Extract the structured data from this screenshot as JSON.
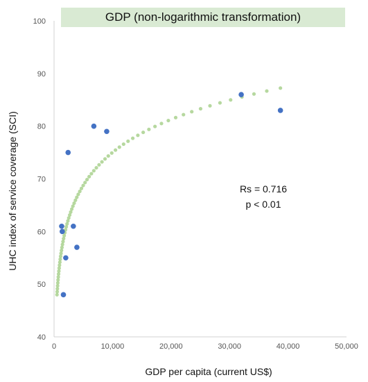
{
  "chart_data": {
    "type": "scatter",
    "title": "GDP (non-logarithmic transformation)",
    "xlabel": "GDP per capita (current US$)",
    "ylabel": "UHC index of service coverage (SCI)",
    "xlim": [
      0,
      50000
    ],
    "ylim": [
      40,
      100
    ],
    "x_ticks": [
      "0",
      "10,000",
      "20,000",
      "30,000",
      "40,000",
      "50,000"
    ],
    "y_ticks": [
      "40",
      "50",
      "60",
      "70",
      "80",
      "90",
      "100"
    ],
    "grid": false,
    "points": [
      {
        "x": 1300,
        "y": 61
      },
      {
        "x": 1400,
        "y": 60
      },
      {
        "x": 1600,
        "y": 48
      },
      {
        "x": 2000,
        "y": 55
      },
      {
        "x": 2400,
        "y": 75
      },
      {
        "x": 3300,
        "y": 61
      },
      {
        "x": 3900,
        "y": 57
      },
      {
        "x": 6800,
        "y": 80
      },
      {
        "x": 9000,
        "y": 79
      },
      {
        "x": 32000,
        "y": 86
      },
      {
        "x": 38700,
        "y": 83
      }
    ],
    "trendline": {
      "type": "logarithmic",
      "x_range": [
        500,
        38700
      ]
    },
    "annotations": [
      "Rs = 0.716",
      "p < 0.01"
    ],
    "colors": {
      "points": "#4472c4",
      "trendline": "#a9d18e",
      "title_band": "#d9ead3"
    }
  }
}
